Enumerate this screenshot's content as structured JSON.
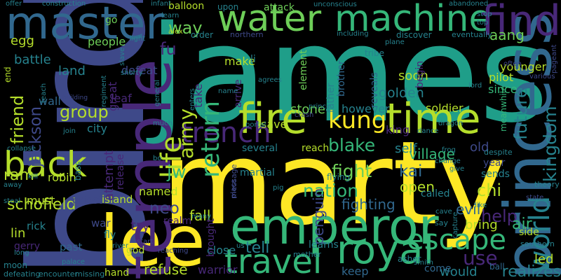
{
  "colors": {
    "background": "#000000",
    "palette": [
      "#fde725",
      "#b5de2b",
      "#6ece58",
      "#35b779",
      "#1f9e89",
      "#26828e",
      "#31688e",
      "#3e4989",
      "#482878",
      "#440154"
    ]
  },
  "words": [
    {
      "text": "james",
      "color": "#1f9e89"
    },
    {
      "text": "marty",
      "color": "#fde725"
    },
    {
      "text": "bird",
      "color": "#3e4989"
    },
    {
      "text": "lee",
      "color": "#fde725"
    },
    {
      "text": "princess",
      "color": "#31688e"
    },
    {
      "text": "emperor",
      "color": "#35b779"
    },
    {
      "text": "temple",
      "color": "#482878"
    },
    {
      "text": "master",
      "color": "#31688e"
    },
    {
      "text": "machine",
      "color": "#35b779"
    },
    {
      "text": "water",
      "color": "#6ece58"
    },
    {
      "text": "find",
      "color": "#482878"
    },
    {
      "text": "time",
      "color": "#b5de2b"
    },
    {
      "text": "fire",
      "color": "#b5de2b"
    },
    {
      "text": "kung",
      "color": "#fde725"
    },
    {
      "text": "royal",
      "color": "#35b779"
    },
    {
      "text": "travel",
      "color": "#35b779"
    },
    {
      "text": "escape",
      "color": "#35b779"
    },
    {
      "text": "back",
      "color": "#b5de2b"
    },
    {
      "text": "trench",
      "color": "#482878"
    },
    {
      "text": "life",
      "color": "#b5de2b"
    },
    {
      "text": "world",
      "color": "#26828e"
    },
    {
      "text": "kingdom",
      "color": "#26828e"
    },
    {
      "text": "future",
      "color": "#26828e"
    },
    {
      "text": "group",
      "color": "#b5de2b"
    },
    {
      "text": "friend",
      "color": "#b5de2b"
    },
    {
      "text": "jackson",
      "color": "#3e4989"
    },
    {
      "text": "schofield",
      "color": "#b5de2b"
    },
    {
      "text": "return",
      "color": "#35b779"
    },
    {
      "text": "army",
      "color": "#b5de2b"
    },
    {
      "text": "fu",
      "color": "#482878"
    },
    {
      "text": "way",
      "color": "#6ece58"
    },
    {
      "text": "jw",
      "color": "#35b779"
    },
    {
      "text": "neo",
      "color": "#3e4989"
    },
    {
      "text": "nation",
      "color": "#35b779"
    },
    {
      "text": "fight",
      "color": "#6ece58"
    },
    {
      "text": "blake",
      "color": "#35b779"
    },
    {
      "text": "kai",
      "color": "#31688e"
    },
    {
      "text": "chi",
      "color": "#b5de2b"
    },
    {
      "text": "open",
      "color": "#b5de2b"
    },
    {
      "text": "evil",
      "color": "#31688e"
    },
    {
      "text": "use",
      "color": "#482878"
    },
    {
      "text": "help",
      "color": "#482878"
    },
    {
      "text": "tell",
      "color": "#26828e"
    },
    {
      "text": "fall",
      "color": "#b5de2b"
    },
    {
      "text": "try",
      "color": "#482878"
    },
    {
      "text": "penguin",
      "color": "#3e4989"
    },
    {
      "text": "fighting",
      "color": "#31688e"
    },
    {
      "text": "refuse",
      "color": "#b5de2b"
    },
    {
      "text": "warrior",
      "color": "#482878"
    },
    {
      "text": "keep",
      "color": "#31688e"
    },
    {
      "text": "would",
      "color": "#26828e"
    },
    {
      "text": "realizes",
      "color": "#26828e"
    },
    {
      "text": "air",
      "color": "#35b779"
    },
    {
      "text": "bring",
      "color": "#b5de2b"
    },
    {
      "text": "led",
      "color": "#b5de2b"
    },
    {
      "text": "aang",
      "color": "#6ece58"
    },
    {
      "text": "soon",
      "color": "#b5de2b"
    },
    {
      "text": "golden",
      "color": "#26828e"
    },
    {
      "text": "village",
      "color": "#35b779"
    },
    {
      "text": "stone",
      "color": "#6ece58"
    },
    {
      "text": "however",
      "color": "#26828e"
    },
    {
      "text": "soldier",
      "color": "#b5de2b"
    },
    {
      "text": "king",
      "color": "#482878"
    },
    {
      "text": "self",
      "color": "#26828e"
    },
    {
      "text": "old",
      "color": "#3e4989"
    },
    {
      "text": "pilot",
      "color": "#b5de2b"
    },
    {
      "text": "younger",
      "color": "#b5de2b"
    },
    {
      "text": "since",
      "color": "#35b779"
    },
    {
      "text": "battle",
      "color": "#26828e"
    },
    {
      "text": "people",
      "color": "#6ece58"
    },
    {
      "text": "egg",
      "color": "#b5de2b"
    },
    {
      "text": "land",
      "color": "#26828e"
    },
    {
      "text": "leaf",
      "color": "#482878"
    },
    {
      "text": "great",
      "color": "#482878"
    },
    {
      "text": "defeat",
      "color": "#3e4989"
    },
    {
      "text": "city",
      "color": "#26828e"
    },
    {
      "text": "wall",
      "color": "#31688e"
    },
    {
      "text": "ram",
      "color": "#b5de2b"
    },
    {
      "text": "robin",
      "color": "#b5de2b"
    },
    {
      "text": "must",
      "color": "#b5de2b"
    },
    {
      "text": "priest",
      "color": "#3e4989"
    },
    {
      "text": "island",
      "color": "#b5de2b"
    },
    {
      "text": "named",
      "color": "#b5de2b"
    },
    {
      "text": "rick",
      "color": "#26828e"
    },
    {
      "text": "lin",
      "color": "#b5de2b"
    },
    {
      "text": "war",
      "color": "#3e4989"
    },
    {
      "text": "fly",
      "color": "#26828e"
    },
    {
      "text": "gerry",
      "color": "#482878"
    },
    {
      "text": "past",
      "color": "#31688e"
    },
    {
      "text": "god",
      "color": "#b5de2b"
    },
    {
      "text": "hand",
      "color": "#b5de2b"
    },
    {
      "text": "moon",
      "color": "#26828e"
    },
    {
      "text": "close",
      "color": "#26828e"
    },
    {
      "text": "learns",
      "color": "#26828e"
    },
    {
      "text": "come",
      "color": "#31688e"
    },
    {
      "text": "ball",
      "color": "#31688e"
    },
    {
      "text": "side",
      "color": "#b5de2b"
    },
    {
      "text": "sends",
      "color": "#26828e"
    },
    {
      "text": "year",
      "color": "#3e4989"
    },
    {
      "text": "martial",
      "color": "#26828e"
    },
    {
      "text": "several",
      "color": "#26828e"
    },
    {
      "text": "reach",
      "color": "#b5de2b"
    },
    {
      "text": "save",
      "color": "#b5de2b"
    },
    {
      "text": "brought",
      "color": "#482878"
    },
    {
      "text": "realm",
      "color": "#482878"
    },
    {
      "text": "make",
      "color": "#b5de2b"
    },
    {
      "text": "take",
      "color": "#482878"
    },
    {
      "text": "arrive",
      "color": "#482878"
    },
    {
      "text": "element",
      "color": "#6ece58"
    },
    {
      "text": "father",
      "color": "#26828e"
    },
    {
      "text": "brother",
      "color": "#31688e"
    },
    {
      "text": "reveals",
      "color": "#31688e"
    },
    {
      "text": "begin",
      "color": "#482878"
    },
    {
      "text": "li",
      "color": "#26828e"
    },
    {
      "text": "attack",
      "color": "#6ece58"
    },
    {
      "text": "balloon",
      "color": "#b5de2b"
    },
    {
      "text": "upon",
      "color": "#26828e"
    },
    {
      "text": "unconscious",
      "color": "#26828e"
    },
    {
      "text": "construction",
      "color": "#26828e"
    },
    {
      "text": "offer",
      "color": "#26828e"
    },
    {
      "text": "abandoned",
      "color": "#26828e"
    },
    {
      "text": "infant",
      "color": "#26828e"
    },
    {
      "text": "learn",
      "color": "#26828e"
    },
    {
      "text": "alex",
      "color": "#b5de2b"
    },
    {
      "text": "order",
      "color": "#26828e"
    },
    {
      "text": "northern",
      "color": "#3e4989"
    },
    {
      "text": "tribe",
      "color": "#26828e"
    },
    {
      "text": "discover",
      "color": "#26828e"
    },
    {
      "text": "eventually",
      "color": "#26828e"
    },
    {
      "text": "stop",
      "color": "#26828e"
    },
    {
      "text": "top",
      "color": "#26828e"
    },
    {
      "text": "including",
      "color": "#26828e"
    },
    {
      "text": "plane",
      "color": "#26828e"
    },
    {
      "text": "go",
      "color": "#6ece58"
    },
    {
      "text": "end",
      "color": "#b5de2b"
    },
    {
      "text": "slave",
      "color": "#26828e"
    },
    {
      "text": "light",
      "color": "#26828e"
    },
    {
      "text": "shorty",
      "color": "#26828e"
    },
    {
      "text": "teach",
      "color": "#26828e"
    },
    {
      "text": "regiment",
      "color": "#26828e"
    },
    {
      "text": "building",
      "color": "#3e4989"
    },
    {
      "text": "general",
      "color": "#26828e"
    },
    {
      "text": "enters",
      "color": "#26828e"
    },
    {
      "text": "agrees",
      "color": "#26828e"
    },
    {
      "text": "lord",
      "color": "#26828e"
    },
    {
      "text": "meanwhile",
      "color": "#35b779"
    },
    {
      "text": "various",
      "color": "#3e4989"
    },
    {
      "text": "pageant",
      "color": "#3e4989"
    },
    {
      "text": "often",
      "color": "#3e4989"
    },
    {
      "text": "name",
      "color": "#26828e"
    },
    {
      "text": "prince",
      "color": "#26828e"
    },
    {
      "text": "portal",
      "color": "#26828e"
    },
    {
      "text": "dragon",
      "color": "#26828e"
    },
    {
      "text": "dance",
      "color": "#26828e"
    },
    {
      "text": "crash",
      "color": "#3e4989"
    },
    {
      "text": "frog",
      "color": "#26828e"
    },
    {
      "text": "despite",
      "color": "#26828e"
    },
    {
      "text": "change",
      "color": "#26828e"
    },
    {
      "text": "give",
      "color": "#26828e"
    },
    {
      "text": "theory",
      "color": "#26828e"
    },
    {
      "text": "state",
      "color": "#3e4989"
    },
    {
      "text": "like",
      "color": "#26828e"
    },
    {
      "text": "collapse",
      "color": "#26828e"
    },
    {
      "text": "bass",
      "color": "#26828e"
    },
    {
      "text": "kill",
      "color": "#26828e"
    },
    {
      "text": "away",
      "color": "#26828e"
    },
    {
      "text": "steal",
      "color": "#26828e"
    },
    {
      "text": "join",
      "color": "#26828e"
    },
    {
      "text": "much",
      "color": "#26828e"
    },
    {
      "text": "bo",
      "color": "#26828e"
    },
    {
      "text": "message",
      "color": "#3e4989"
    },
    {
      "text": "place",
      "color": "#3e4989"
    },
    {
      "text": "flying",
      "color": "#26828e"
    },
    {
      "text": "pig",
      "color": "#26828e"
    },
    {
      "text": "called",
      "color": "#26828e"
    },
    {
      "text": "cave",
      "color": "#26828e"
    },
    {
      "text": "say",
      "color": "#26828e"
    },
    {
      "text": "capture",
      "color": "#26828e"
    },
    {
      "text": "southern",
      "color": "#26828e"
    },
    {
      "text": "mother",
      "color": "#26828e"
    },
    {
      "text": "asher",
      "color": "#26828e"
    },
    {
      "text": "smith",
      "color": "#26828e"
    },
    {
      "text": "defeating",
      "color": "#26828e"
    },
    {
      "text": "encounter",
      "color": "#26828e"
    },
    {
      "text": "missing",
      "color": "#26828e"
    },
    {
      "text": "palace",
      "color": "#26828e"
    },
    {
      "text": "reaching",
      "color": "#3e4989"
    },
    {
      "text": "river",
      "color": "#26828e"
    },
    {
      "text": "many",
      "color": "#26828e"
    },
    {
      "text": "start",
      "color": "#3e4989"
    },
    {
      "text": "us",
      "color": "#26828e"
    },
    {
      "text": "long",
      "color": "#26828e"
    },
    {
      "text": "release",
      "color": "#482878"
    },
    {
      "text": "attempt",
      "color": "#482878"
    }
  ]
}
